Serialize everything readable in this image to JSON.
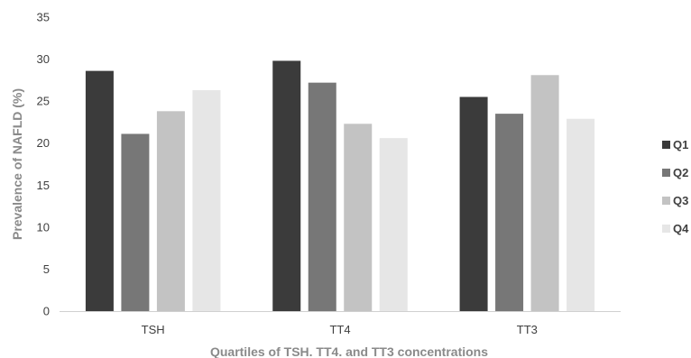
{
  "chart_data": {
    "type": "bar",
    "title": "",
    "xlabel": "Quartiles of TSH. TT4. and TT3 concentrations",
    "ylabel": "Prevalence of NAFLD (%)",
    "ylim": [
      0,
      35
    ],
    "yticks": [
      0,
      5,
      10,
      15,
      20,
      25,
      30,
      35
    ],
    "grid": false,
    "legend_position": "right",
    "categories": [
      "TSH",
      "TT4",
      "TT3"
    ],
    "series": [
      {
        "name": "Q1",
        "color": "#3b3b3b",
        "values": [
          28.6,
          29.8,
          25.5
        ]
      },
      {
        "name": "Q2",
        "color": "#777777",
        "values": [
          21.1,
          27.2,
          23.5
        ]
      },
      {
        "name": "Q3",
        "color": "#c3c3c3",
        "values": [
          23.8,
          22.3,
          28.1
        ]
      },
      {
        "name": "Q4",
        "color": "#e6e6e6",
        "values": [
          26.3,
          20.6,
          22.9
        ]
      }
    ]
  }
}
